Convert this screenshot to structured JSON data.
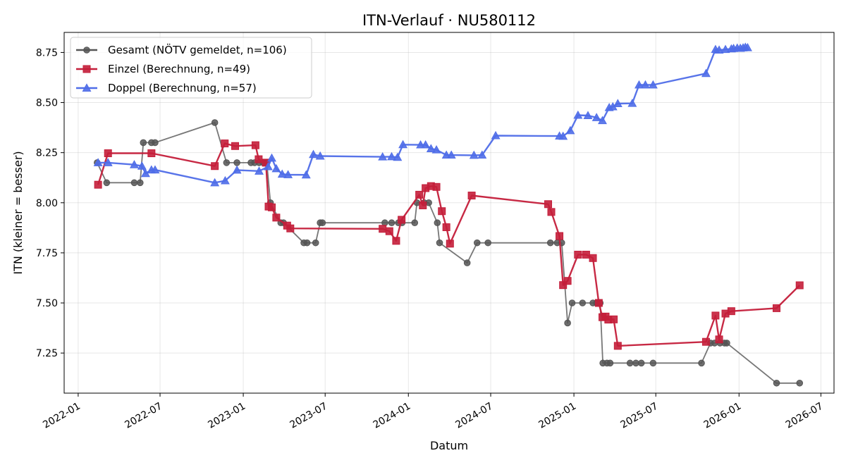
{
  "chart_data": {
    "type": "line",
    "title": "ITN-Verlauf · NU580112",
    "xlabel": "Datum",
    "ylabel": "ITN  (kleiner = besser)",
    "x_ticks": [
      "2022-01",
      "2022-07",
      "2023-01",
      "2023-07",
      "2024-01",
      "2024-07",
      "2025-01",
      "2025-07",
      "2026-01",
      "2026-07"
    ],
    "y_ticks": [
      "7.25",
      "7.50",
      "7.75",
      "8.00",
      "8.25",
      "8.50",
      "8.75"
    ],
    "xlim": [
      "2021-12-01",
      "2026-07-30"
    ],
    "ylim": [
      7.05,
      8.85
    ],
    "grid": true,
    "legend_position": "top-left",
    "series": [
      {
        "name": "Gesamt (NÖTV gemeldet, n=106)",
        "color": "#555555",
        "marker": "circle",
        "points": [
          [
            "2022-02-12",
            8.2
          ],
          [
            "2022-03-05",
            8.1
          ],
          [
            "2022-05-05",
            8.1
          ],
          [
            "2022-05-18",
            8.1
          ],
          [
            "2022-05-25",
            8.3
          ],
          [
            "2022-06-12",
            8.3
          ],
          [
            "2022-06-20",
            8.3
          ],
          [
            "2022-10-30",
            8.4
          ],
          [
            "2022-11-25",
            8.2
          ],
          [
            "2022-12-18",
            8.2
          ],
          [
            "2023-01-18",
            8.2
          ],
          [
            "2023-01-26",
            8.2
          ],
          [
            "2023-02-05",
            8.2
          ],
          [
            "2023-02-14",
            8.2
          ],
          [
            "2023-02-22",
            8.2
          ],
          [
            "2023-03-02",
            8.0
          ],
          [
            "2023-03-25",
            7.9
          ],
          [
            "2023-03-31",
            7.9
          ],
          [
            "2023-05-15",
            7.8
          ],
          [
            "2023-05-22",
            7.8
          ],
          [
            "2023-06-10",
            7.8
          ],
          [
            "2023-06-20",
            7.9
          ],
          [
            "2023-06-25",
            7.9
          ],
          [
            "2023-11-10",
            7.9
          ],
          [
            "2023-11-25",
            7.9
          ],
          [
            "2023-12-10",
            7.9
          ],
          [
            "2023-12-18",
            7.9
          ],
          [
            "2024-01-15",
            7.9
          ],
          [
            "2024-01-20",
            8.0
          ],
          [
            "2024-02-05",
            8.0
          ],
          [
            "2024-02-15",
            8.0
          ],
          [
            "2024-03-05",
            7.9
          ],
          [
            "2024-03-10",
            7.8
          ],
          [
            "2024-05-10",
            7.7
          ],
          [
            "2024-06-01",
            7.8
          ],
          [
            "2024-06-25",
            7.8
          ],
          [
            "2024-11-10",
            7.8
          ],
          [
            "2024-11-25",
            7.8
          ],
          [
            "2024-12-05",
            7.8
          ],
          [
            "2024-12-18",
            7.4
          ],
          [
            "2024-12-28",
            7.5
          ],
          [
            "2025-01-20",
            7.5
          ],
          [
            "2025-02-12",
            7.5
          ],
          [
            "2025-02-20",
            7.5
          ],
          [
            "2025-02-28",
            7.5
          ],
          [
            "2025-03-06",
            7.2
          ],
          [
            "2025-03-15",
            7.2
          ],
          [
            "2025-03-22",
            7.2
          ],
          [
            "2025-05-05",
            7.2
          ],
          [
            "2025-05-18",
            7.2
          ],
          [
            "2025-05-30",
            7.2
          ],
          [
            "2025-06-25",
            7.2
          ],
          [
            "2025-10-10",
            7.2
          ],
          [
            "2025-10-30",
            7.3
          ],
          [
            "2025-11-08",
            7.3
          ],
          [
            "2025-11-20",
            7.3
          ],
          [
            "2025-11-30",
            7.3
          ],
          [
            "2025-12-05",
            7.3
          ],
          [
            "2026-03-25",
            7.1
          ],
          [
            "2026-05-15",
            7.1
          ]
        ]
      },
      {
        "name": "Einzel (Berechnung, n=49)",
        "color": "#c41e3a",
        "marker": "square",
        "points": [
          [
            "2022-02-14",
            8.09
          ],
          [
            "2022-03-08",
            8.247
          ],
          [
            "2022-06-12",
            8.247
          ],
          [
            "2022-10-30",
            8.183
          ],
          [
            "2022-11-21",
            8.296
          ],
          [
            "2022-12-14",
            8.283
          ],
          [
            "2023-01-28",
            8.287
          ],
          [
            "2023-02-04",
            8.217
          ],
          [
            "2023-02-20",
            8.2
          ],
          [
            "2023-02-26",
            7.981
          ],
          [
            "2023-03-05",
            7.977
          ],
          [
            "2023-03-15",
            7.926
          ],
          [
            "2023-04-08",
            7.886
          ],
          [
            "2023-04-15",
            7.872
          ],
          [
            "2023-11-05",
            7.87
          ],
          [
            "2023-11-20",
            7.858
          ],
          [
            "2023-12-05",
            7.81
          ],
          [
            "2023-12-17",
            7.915
          ],
          [
            "2024-01-25",
            8.04
          ],
          [
            "2024-02-02",
            7.987
          ],
          [
            "2024-02-08",
            8.073
          ],
          [
            "2024-02-20",
            8.083
          ],
          [
            "2024-03-03",
            8.079
          ],
          [
            "2024-03-15",
            7.958
          ],
          [
            "2024-03-25",
            7.878
          ],
          [
            "2024-04-02",
            7.796
          ],
          [
            "2024-05-20",
            8.036
          ],
          [
            "2024-11-05",
            7.993
          ],
          [
            "2024-11-12",
            7.954
          ],
          [
            "2024-11-30",
            7.834
          ],
          [
            "2024-12-08",
            7.589
          ],
          [
            "2024-12-18",
            7.61
          ],
          [
            "2025-01-10",
            7.741
          ],
          [
            "2025-01-28",
            7.741
          ],
          [
            "2025-02-12",
            7.724
          ],
          [
            "2025-02-25",
            7.5
          ],
          [
            "2025-03-05",
            7.429
          ],
          [
            "2025-03-12",
            7.432
          ],
          [
            "2025-03-18",
            7.417
          ],
          [
            "2025-03-30",
            7.418
          ],
          [
            "2025-04-08",
            7.286
          ],
          [
            "2025-10-20",
            7.306
          ],
          [
            "2025-11-10",
            7.437
          ],
          [
            "2025-11-18",
            7.318
          ],
          [
            "2025-12-02",
            7.447
          ],
          [
            "2025-12-15",
            7.459
          ],
          [
            "2026-03-25",
            7.474
          ],
          [
            "2026-05-15",
            7.588
          ]
        ]
      },
      {
        "name": "Doppel (Berechnung, n=57)",
        "color": "#4f6de8",
        "marker": "triangle",
        "points": [
          [
            "2022-02-14",
            8.2
          ],
          [
            "2022-03-08",
            8.2
          ],
          [
            "2022-05-05",
            8.19
          ],
          [
            "2022-05-22",
            8.183
          ],
          [
            "2022-05-30",
            8.146
          ],
          [
            "2022-06-12",
            8.164
          ],
          [
            "2022-06-20",
            8.164
          ],
          [
            "2022-10-30",
            8.1
          ],
          [
            "2022-11-22",
            8.11
          ],
          [
            "2022-12-18",
            8.163
          ],
          [
            "2023-02-05",
            8.158
          ],
          [
            "2023-02-25",
            8.18
          ],
          [
            "2023-03-05",
            8.223
          ],
          [
            "2023-03-15",
            8.17
          ],
          [
            "2023-03-28",
            8.143
          ],
          [
            "2023-04-10",
            8.14
          ],
          [
            "2023-05-20",
            8.139
          ],
          [
            "2023-06-05",
            8.241
          ],
          [
            "2023-06-20",
            8.233
          ],
          [
            "2023-11-05",
            8.229
          ],
          [
            "2023-11-25",
            8.23
          ],
          [
            "2023-12-08",
            8.227
          ],
          [
            "2023-12-20",
            8.29
          ],
          [
            "2024-01-28",
            8.289
          ],
          [
            "2024-02-08",
            8.289
          ],
          [
            "2024-02-20",
            8.27
          ],
          [
            "2024-03-03",
            8.264
          ],
          [
            "2024-03-25",
            8.238
          ],
          [
            "2024-04-05",
            8.238
          ],
          [
            "2024-05-25",
            8.237
          ],
          [
            "2024-06-12",
            8.238
          ],
          [
            "2024-07-12",
            8.335
          ],
          [
            "2024-11-30",
            8.333
          ],
          [
            "2024-12-08",
            8.332
          ],
          [
            "2024-12-24",
            8.36
          ],
          [
            "2025-01-10",
            8.437
          ],
          [
            "2025-02-01",
            8.435
          ],
          [
            "2025-02-20",
            8.425
          ],
          [
            "2025-03-05",
            8.41
          ],
          [
            "2025-03-20",
            8.475
          ],
          [
            "2025-03-28",
            8.479
          ],
          [
            "2025-04-08",
            8.495
          ],
          [
            "2025-05-10",
            8.496
          ],
          [
            "2025-05-25",
            8.588
          ],
          [
            "2025-06-08",
            8.588
          ],
          [
            "2025-06-25",
            8.588
          ],
          [
            "2025-10-20",
            8.645
          ],
          [
            "2025-11-10",
            8.765
          ],
          [
            "2025-11-18",
            8.762
          ],
          [
            "2025-12-02",
            8.765
          ],
          [
            "2025-12-15",
            8.768
          ],
          [
            "2025-12-20",
            8.77
          ],
          [
            "2025-12-28",
            8.772
          ],
          [
            "2026-01-04",
            8.771
          ],
          [
            "2026-01-10",
            8.773
          ],
          [
            "2026-01-15",
            8.776
          ],
          [
            "2026-01-20",
            8.774
          ]
        ]
      }
    ]
  }
}
